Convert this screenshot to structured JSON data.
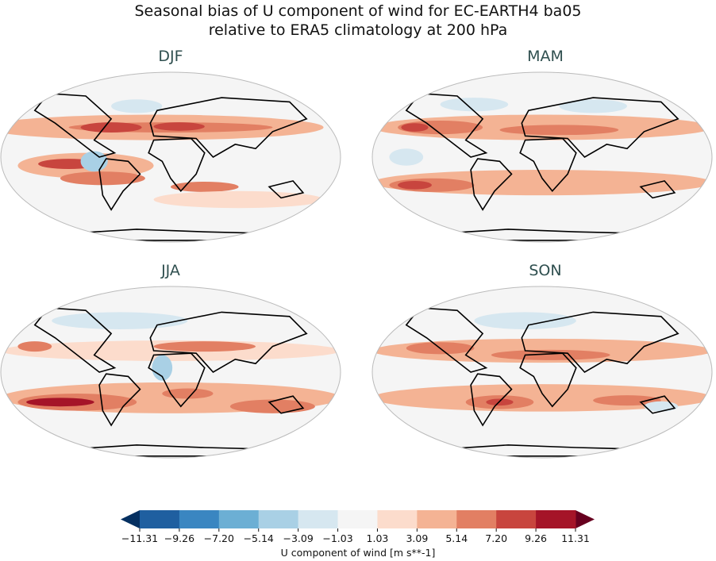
{
  "title": [
    "Seasonal bias of U component of wind for EC-EARTH4 ba05",
    "relative to ERA5 climatology at 200 hPa"
  ],
  "panels": [
    {
      "label": "DJF"
    },
    {
      "label": "MAM"
    },
    {
      "label": "JJA"
    },
    {
      "label": "SON"
    }
  ],
  "colorbar": {
    "label": "U component of wind [m s**-1]",
    "ticks": [
      "−11.31",
      "−9.26",
      "−7.20",
      "−5.14",
      "−3.09",
      "−1.03",
      "1.03",
      "3.09",
      "5.14",
      "7.20",
      "9.26",
      "11.31"
    ],
    "colors": [
      "#1f5fa0",
      "#3a86c1",
      "#6cafd4",
      "#a9d0e5",
      "#d6e7f0",
      "#f5f5f5",
      "#fcdccc",
      "#f4b394",
      "#e27f63",
      "#c8453e",
      "#a51428"
    ],
    "extend_min_color": "#053061",
    "extend_max_color": "#67001f",
    "extend": "both"
  }
}
